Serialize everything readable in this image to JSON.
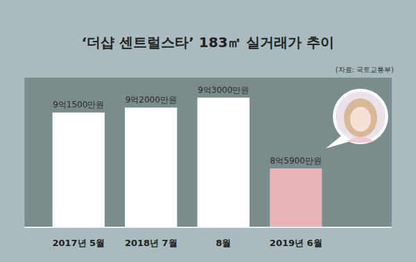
{
  "chart_data": {
    "type": "bar",
    "title": "‘더샵 센트럴스타’ 183㎡ 실거래가 추이",
    "source": "(자료: 국토교통부)",
    "categories": [
      "2017년 5월",
      "2018년 7월",
      "8월",
      "2019년 6월"
    ],
    "values": [
      91500,
      92000,
      93000,
      85900
    ],
    "value_labels": [
      "9억1500만원",
      "9억2000만원",
      "9억3000만원",
      "8억5900만원"
    ],
    "colors": [
      "#ffffff",
      "#ffffff",
      "#ffffff",
      "#e8b3b7"
    ],
    "ylim": [
      80000,
      95000
    ],
    "data_labels": true,
    "tick_labels": false,
    "grid": false
  }
}
